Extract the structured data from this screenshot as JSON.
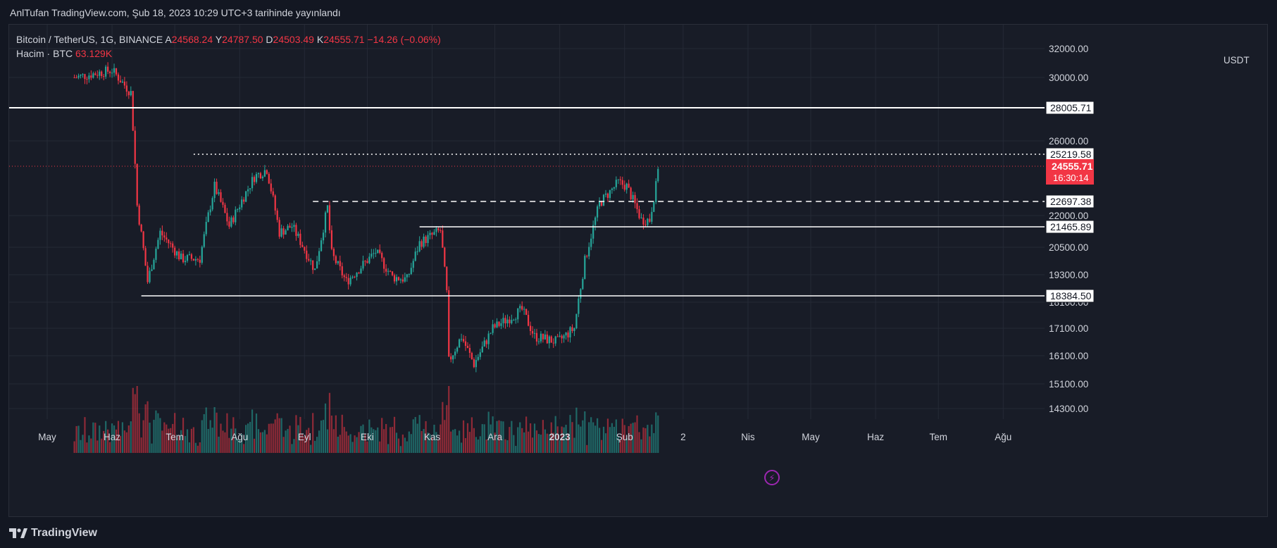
{
  "header": {
    "publish_line": "AnlTufan TradingView.com, Şub 18, 2023 10:29 UTC+3 tarihinde yayınlandı"
  },
  "legend": {
    "symbol": "Bitcoin / TetherUS, 1G, BINANCE",
    "o_key": "A",
    "o_val": "24568.24",
    "h_key": "Y",
    "h_val": "24787.50",
    "l_key": "D",
    "l_val": "24503.49",
    "c_key": "K",
    "c_val": "24555.71",
    "change": "−14.26 (−0.06%)",
    "volume_label": "Hacim · BTC",
    "volume_value": "63.129K"
  },
  "axis": {
    "unit": "USDT",
    "current_price": "24555.71",
    "countdown": "16:30:14"
  },
  "brand": {
    "name": "TradingView"
  },
  "icons": {
    "flash": "flash-icon",
    "logo": "tradingview-logo-icon"
  },
  "colors": {
    "up": "#26a69a",
    "down": "#f23645",
    "level": "#ffffff",
    "background": "#181c27"
  },
  "chart_data": {
    "type": "candlestick",
    "symbol": "BTCUSDT",
    "interval": "1G",
    "y_ticks": [
      32000,
      30000,
      26000,
      22000,
      20500,
      19300,
      18100,
      17100,
      16100,
      15100,
      14300
    ],
    "y_tick_labels": [
      "32000.00",
      "30000.00",
      "26000.00",
      "22000.00",
      "20500.00",
      "19300.00",
      "18100.00",
      "17100.00",
      "16100.00",
      "15100.00",
      "14300.00"
    ],
    "x_labels": [
      "May",
      "Haz",
      "Tem",
      "Ağu",
      "Eyl",
      "Eki",
      "Kas",
      "Ara",
      "2023",
      "Şub",
      "2",
      "Nis",
      "May",
      "Haz",
      "Tem",
      "Ağu"
    ],
    "levels": [
      {
        "value": 28005.71,
        "label": "28005.71",
        "style": "solid",
        "from": "2022-05-01"
      },
      {
        "value": 25219.58,
        "label": "25219.58",
        "style": "dotted",
        "from": "2022-07-10"
      },
      {
        "value": 22697.38,
        "label": "22697.38",
        "style": "dashed",
        "from": "2022-09-05"
      },
      {
        "value": 21465.89,
        "label": "21465.89",
        "style": "solid",
        "from": "2022-10-26"
      },
      {
        "value": 18384.5,
        "label": "18384.50",
        "style": "solid",
        "from": "2022-06-15"
      }
    ],
    "close_path": [
      {
        "date": "2022-05-14",
        "close": 30000
      },
      {
        "date": "2022-06-01",
        "close": 30500
      },
      {
        "date": "2022-06-10",
        "close": 29000
      },
      {
        "date": "2022-06-13",
        "close": 22500
      },
      {
        "date": "2022-06-18",
        "close": 19000
      },
      {
        "date": "2022-06-24",
        "close": 21200
      },
      {
        "date": "2022-07-04",
        "close": 20000
      },
      {
        "date": "2022-07-13",
        "close": 20000
      },
      {
        "date": "2022-07-20",
        "close": 23500
      },
      {
        "date": "2022-07-27",
        "close": 21500
      },
      {
        "date": "2022-08-08",
        "close": 24000
      },
      {
        "date": "2022-08-14",
        "close": 24400
      },
      {
        "date": "2022-08-20",
        "close": 21200
      },
      {
        "date": "2022-08-26",
        "close": 21500
      },
      {
        "date": "2022-09-06",
        "close": 19500
      },
      {
        "date": "2022-09-12",
        "close": 22400
      },
      {
        "date": "2022-09-14",
        "close": 20200
      },
      {
        "date": "2022-09-21",
        "close": 19000
      },
      {
        "date": "2022-10-05",
        "close": 20300
      },
      {
        "date": "2022-10-13",
        "close": 19200
      },
      {
        "date": "2022-10-20",
        "close": 19100
      },
      {
        "date": "2022-10-26",
        "close": 20700
      },
      {
        "date": "2022-11-05",
        "close": 21300
      },
      {
        "date": "2022-11-08",
        "close": 18500
      },
      {
        "date": "2022-11-09",
        "close": 15900
      },
      {
        "date": "2022-11-15",
        "close": 16800
      },
      {
        "date": "2022-11-21",
        "close": 15800
      },
      {
        "date": "2022-11-30",
        "close": 17100
      },
      {
        "date": "2022-12-14",
        "close": 17800
      },
      {
        "date": "2022-12-20",
        "close": 16800
      },
      {
        "date": "2022-12-31",
        "close": 16600
      },
      {
        "date": "2023-01-08",
        "close": 17100
      },
      {
        "date": "2023-01-13",
        "close": 19900
      },
      {
        "date": "2023-01-20",
        "close": 22600
      },
      {
        "date": "2023-01-29",
        "close": 23700
      },
      {
        "date": "2023-02-02",
        "close": 23500
      },
      {
        "date": "2023-02-09",
        "close": 21800
      },
      {
        "date": "2023-02-13",
        "close": 21800
      },
      {
        "date": "2023-02-16",
        "close": 23500
      },
      {
        "date": "2023-02-17",
        "close": 24560
      }
    ]
  }
}
